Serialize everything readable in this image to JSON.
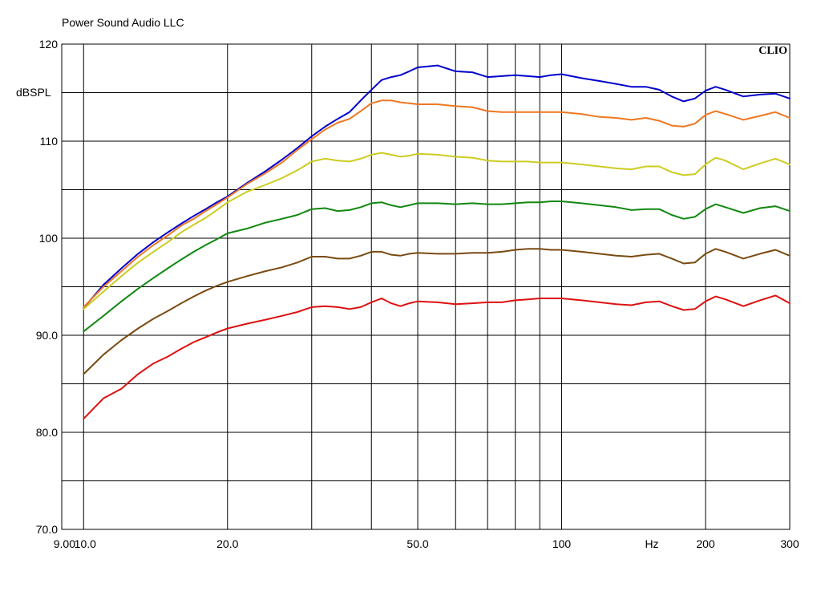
{
  "chart_data": {
    "type": "line",
    "title": "Power Sound Audio LLC",
    "brand": "CLIO",
    "ylabel": "dBSPL",
    "xlabel": "Hz",
    "x_scale": "log",
    "xlim": [
      9.0,
      300
    ],
    "ylim": [
      70,
      120
    ],
    "grid": true,
    "x_tick_labels": [
      {
        "value": 9.0,
        "label": "9.00"
      },
      {
        "value": 10,
        "label": "10.0"
      },
      {
        "value": 20,
        "label": "20.0"
      },
      {
        "value": 50,
        "label": "50.0"
      },
      {
        "value": 100,
        "label": "100"
      },
      {
        "value": 200,
        "label": "200"
      },
      {
        "value": 300,
        "label": "300"
      }
    ],
    "x_gridlines": [
      10,
      20,
      30,
      40,
      50,
      60,
      70,
      80,
      90,
      100,
      200
    ],
    "y_tick_labels": [
      {
        "value": 120,
        "label": "120"
      },
      {
        "value": 110,
        "label": "110"
      },
      {
        "value": 100,
        "label": "100"
      },
      {
        "value": 90,
        "label": "90.0"
      },
      {
        "value": 80,
        "label": "80.0"
      },
      {
        "value": 70,
        "label": "70.0"
      }
    ],
    "y_gridlines": [
      75,
      80,
      85,
      90,
      95,
      100,
      105,
      110,
      115
    ],
    "x": [
      10,
      11,
      12,
      13,
      14,
      15,
      16,
      17,
      18,
      19,
      20,
      22,
      24,
      26,
      28,
      30,
      32,
      34,
      36,
      38,
      40,
      42,
      44,
      46,
      48,
      50,
      55,
      60,
      65,
      70,
      75,
      80,
      85,
      90,
      95,
      100,
      110,
      120,
      130,
      140,
      150,
      160,
      170,
      180,
      190,
      200,
      210,
      220,
      240,
      260,
      280,
      300
    ],
    "series": [
      {
        "color": "#0000cc",
        "values": [
          92.8,
          95.2,
          96.9,
          98.4,
          99.6,
          100.6,
          101.5,
          102.3,
          103.0,
          103.7,
          104.3,
          105.7,
          106.9,
          108.1,
          109.3,
          110.5,
          111.5,
          112.3,
          113.0,
          114.2,
          115.3,
          116.3,
          116.6,
          116.8,
          117.2,
          117.6,
          117.8,
          117.2,
          117.1,
          116.6,
          116.7,
          116.8,
          116.7,
          116.6,
          116.8,
          116.9,
          116.5,
          116.2,
          115.9,
          115.6,
          115.6,
          115.3,
          114.6,
          114.1,
          114.4,
          115.2,
          115.6,
          115.3,
          114.6,
          114.8,
          114.9,
          114.4
        ]
      },
      {
        "color": "#ee7722",
        "values": [
          92.9,
          95.0,
          96.6,
          98.1,
          99.3,
          100.3,
          101.3,
          102.0,
          102.8,
          103.5,
          104.2,
          105.6,
          106.7,
          107.8,
          109.1,
          110.2,
          111.2,
          111.9,
          112.3,
          113.1,
          113.9,
          114.2,
          114.2,
          114.0,
          113.9,
          113.8,
          113.8,
          113.6,
          113.5,
          113.1,
          113.0,
          113.0,
          113.0,
          113.0,
          113.0,
          113.0,
          112.8,
          112.5,
          112.4,
          112.2,
          112.4,
          112.1,
          111.6,
          111.5,
          111.8,
          112.7,
          113.1,
          112.8,
          112.2,
          112.6,
          113.0,
          112.4
        ]
      },
      {
        "color": "#cccc22",
        "values": [
          92.7,
          94.5,
          96.1,
          97.5,
          98.6,
          99.6,
          100.6,
          101.4,
          102.1,
          102.9,
          103.7,
          104.8,
          105.5,
          106.2,
          107.0,
          107.9,
          108.2,
          108.0,
          107.9,
          108.2,
          108.6,
          108.8,
          108.6,
          108.4,
          108.5,
          108.7,
          108.6,
          108.4,
          108.3,
          108.0,
          107.9,
          107.9,
          107.9,
          107.8,
          107.8,
          107.8,
          107.6,
          107.4,
          107.2,
          107.1,
          107.4,
          107.4,
          106.8,
          106.5,
          106.6,
          107.6,
          108.3,
          108.0,
          107.1,
          107.7,
          108.2,
          107.6
        ]
      },
      {
        "color": "#118811",
        "values": [
          90.4,
          92.0,
          93.5,
          94.8,
          95.9,
          96.9,
          97.8,
          98.6,
          99.3,
          99.9,
          100.5,
          101.0,
          101.6,
          102.0,
          102.4,
          103.0,
          103.1,
          102.8,
          102.9,
          103.2,
          103.6,
          103.7,
          103.4,
          103.2,
          103.4,
          103.6,
          103.6,
          103.5,
          103.6,
          103.5,
          103.5,
          103.6,
          103.7,
          103.7,
          103.8,
          103.8,
          103.6,
          103.4,
          103.2,
          102.9,
          103.0,
          103.0,
          102.4,
          102.0,
          102.2,
          103.0,
          103.5,
          103.2,
          102.6,
          103.1,
          103.3,
          102.8
        ]
      },
      {
        "color": "#7a4a10",
        "values": [
          86.0,
          88.0,
          89.5,
          90.7,
          91.7,
          92.5,
          93.3,
          94.0,
          94.6,
          95.1,
          95.5,
          96.1,
          96.6,
          97.0,
          97.5,
          98.1,
          98.1,
          97.9,
          97.9,
          98.2,
          98.6,
          98.6,
          98.3,
          98.2,
          98.4,
          98.5,
          98.4,
          98.4,
          98.5,
          98.5,
          98.6,
          98.8,
          98.9,
          98.9,
          98.8,
          98.8,
          98.6,
          98.4,
          98.2,
          98.1,
          98.3,
          98.4,
          97.9,
          97.4,
          97.5,
          98.4,
          98.9,
          98.6,
          97.9,
          98.4,
          98.8,
          98.2
        ]
      },
      {
        "color": "#dd1111",
        "values": [
          81.4,
          83.5,
          84.5,
          86.0,
          87.1,
          87.8,
          88.6,
          89.3,
          89.8,
          90.3,
          90.7,
          91.2,
          91.6,
          92.0,
          92.4,
          92.9,
          93.0,
          92.9,
          92.7,
          92.9,
          93.4,
          93.8,
          93.3,
          93.0,
          93.3,
          93.5,
          93.4,
          93.2,
          93.3,
          93.4,
          93.4,
          93.6,
          93.7,
          93.8,
          93.8,
          93.8,
          93.6,
          93.4,
          93.2,
          93.1,
          93.4,
          93.5,
          93.0,
          92.6,
          92.7,
          93.5,
          94.0,
          93.7,
          93.0,
          93.6,
          94.1,
          93.3
        ]
      }
    ]
  }
}
